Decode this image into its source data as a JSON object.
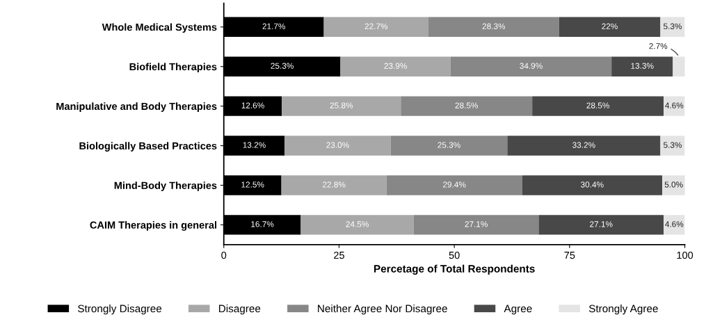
{
  "chart_data": {
    "type": "bar",
    "orientation": "horizontal",
    "stacked": true,
    "categories": [
      "Whole Medical Systems",
      "Biofield Therapies",
      "Manipulative and Body Therapies",
      "Biologically Based Practices",
      "Mind-Body Therapies",
      "CAIM Therapies in general"
    ],
    "series": [
      {
        "name": "Strongly Disagree",
        "color": "#000000",
        "values": [
          21.7,
          25.3,
          12.6,
          13.2,
          12.5,
          16.7
        ],
        "value_labels": [
          "21.7%",
          "25.3%",
          "12.6%",
          "13.2%",
          "12.5%",
          "16.7%"
        ]
      },
      {
        "name": "Disagree",
        "color": "#a8a8a8",
        "values": [
          22.7,
          23.9,
          25.8,
          23.0,
          22.8,
          24.5
        ],
        "value_labels": [
          "22.7%",
          "23.9%",
          "25.8%",
          "23.0%",
          "22.8%",
          "24.5%"
        ]
      },
      {
        "name": "Neither Agree Nor Disagree",
        "color": "#878787",
        "values": [
          28.3,
          34.9,
          28.5,
          25.3,
          29.4,
          27.1
        ],
        "value_labels": [
          "28.3%",
          "34.9%",
          "28.5%",
          "25.3%",
          "29.4%",
          "27.1%"
        ]
      },
      {
        "name": "Agree",
        "color": "#484848",
        "values": [
          22,
          13.3,
          28.5,
          33.2,
          30.4,
          27.1
        ],
        "value_labels": [
          "22%",
          "13.3%",
          "28.5%",
          "33.2%",
          "30.4%",
          "27.1%"
        ]
      },
      {
        "name": "Strongly Agree",
        "color": "#e4e4e4",
        "values": [
          5.3,
          2.7,
          4.6,
          5.3,
          5.0,
          4.6
        ],
        "value_labels": [
          "5.3%",
          "2.7%",
          "4.6%",
          "5.3%",
          "5.0%",
          "4.6%"
        ]
      }
    ],
    "xlim": [
      0,
      100
    ],
    "xticks": [
      0,
      25,
      50,
      75,
      100
    ],
    "xlabel": "Percetage of Total Respondents",
    "legend": "bottom",
    "grid": false
  }
}
